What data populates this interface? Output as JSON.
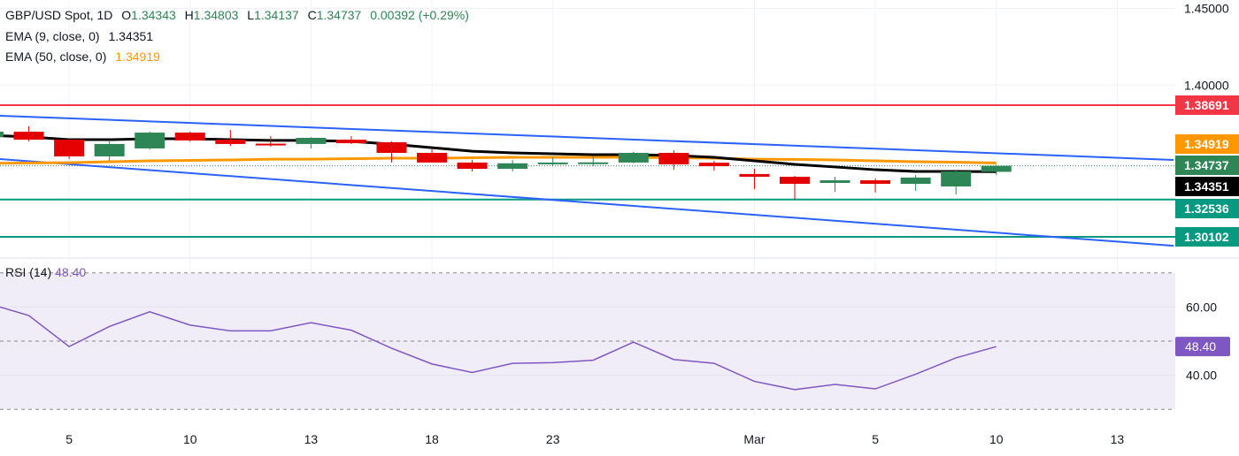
{
  "header": {
    "symbol": "GBP/USD Spot, 1D",
    "open_label": "O",
    "open": "1.34343",
    "high_label": "H",
    "high": "1.34803",
    "low_label": "L",
    "low": "1.34137",
    "close_label": "C",
    "close": "1.34737",
    "change": "0.00392 (+0.29%)"
  },
  "indicators": {
    "ema9": {
      "label": "EMA (9, close, 0)",
      "value": "1.34351",
      "color": "#000000"
    },
    "ema50": {
      "label": "EMA (50, close, 0)",
      "value": "1.34919",
      "color": "#ff9800"
    },
    "rsi": {
      "label": "RSI (14)",
      "value": "48.40",
      "color": "#7e57c2"
    }
  },
  "colors": {
    "up": "#2e8555",
    "down": "#e50000",
    "trendline": "#2962ff",
    "resistance": "#f23645",
    "support": "#089981",
    "rsi_bg": "#f0ecf8"
  },
  "chart_data": {
    "type": "candlestick",
    "price_axis": {
      "ticks": [
        "1.45000",
        "1.40000"
      ],
      "tick_values": [
        1.45,
        1.4
      ]
    },
    "x_ticks": [
      {
        "label": "5",
        "index": 2
      },
      {
        "label": "10",
        "index": 5
      },
      {
        "label": "13",
        "index": 8
      },
      {
        "label": "18",
        "index": 11
      },
      {
        "label": "23",
        "index": 14
      },
      {
        "label": "Mar",
        "index": 19
      },
      {
        "label": "5",
        "index": 22
      },
      {
        "label": "10",
        "index": 25
      },
      {
        "label": "13",
        "index": 28
      }
    ],
    "candles": [
      {
        "o": 1.3662,
        "h": 1.371,
        "l": 1.365,
        "c": 1.3696
      },
      {
        "o": 1.3696,
        "h": 1.3731,
        "l": 1.3633,
        "c": 1.3644
      },
      {
        "o": 1.3644,
        "h": 1.365,
        "l": 1.3518,
        "c": 1.3535
      },
      {
        "o": 1.3535,
        "h": 1.3633,
        "l": 1.3506,
        "c": 1.3616
      },
      {
        "o": 1.3587,
        "h": 1.3696,
        "l": 1.358,
        "c": 1.369
      },
      {
        "o": 1.369,
        "h": 1.3696,
        "l": 1.363,
        "c": 1.3639
      },
      {
        "o": 1.3644,
        "h": 1.3708,
        "l": 1.3604,
        "c": 1.3616
      },
      {
        "o": 1.3618,
        "h": 1.3667,
        "l": 1.3598,
        "c": 1.3614
      },
      {
        "o": 1.3616,
        "h": 1.366,
        "l": 1.3587,
        "c": 1.3656
      },
      {
        "o": 1.3644,
        "h": 1.3667,
        "l": 1.3616,
        "c": 1.3621
      },
      {
        "o": 1.3627,
        "h": 1.3633,
        "l": 1.3495,
        "c": 1.3558
      },
      {
        "o": 1.3558,
        "h": 1.3581,
        "l": 1.3495,
        "c": 1.3495
      },
      {
        "o": 1.3495,
        "h": 1.3512,
        "l": 1.3437,
        "c": 1.3454
      },
      {
        "o": 1.3454,
        "h": 1.3512,
        "l": 1.3437,
        "c": 1.349
      },
      {
        "o": 1.349,
        "h": 1.3529,
        "l": 1.3471,
        "c": 1.3495
      },
      {
        "o": 1.349,
        "h": 1.3535,
        "l": 1.3471,
        "c": 1.3496
      },
      {
        "o": 1.3495,
        "h": 1.3564,
        "l": 1.349,
        "c": 1.3558
      },
      {
        "o": 1.3558,
        "h": 1.3575,
        "l": 1.3448,
        "c": 1.3483
      },
      {
        "o": 1.3494,
        "h": 1.3506,
        "l": 1.3443,
        "c": 1.3471
      },
      {
        "o": 1.342,
        "h": 1.3454,
        "l": 1.3322,
        "c": 1.3402
      },
      {
        "o": 1.3402,
        "h": 1.3408,
        "l": 1.3252,
        "c": 1.3356
      },
      {
        "o": 1.3362,
        "h": 1.3402,
        "l": 1.3304,
        "c": 1.3379
      },
      {
        "o": 1.3379,
        "h": 1.3391,
        "l": 1.3299,
        "c": 1.3356
      },
      {
        "o": 1.3356,
        "h": 1.3414,
        "l": 1.331,
        "c": 1.3397
      },
      {
        "o": 1.3339,
        "h": 1.3443,
        "l": 1.3287,
        "c": 1.3437
      },
      {
        "o": 1.34343,
        "h": 1.34803,
        "l": 1.34137,
        "c": 1.34737
      }
    ],
    "ema9": [
      1.3673,
      1.3662,
      1.3644,
      1.3644,
      1.365,
      1.365,
      1.3644,
      1.3639,
      1.3639,
      1.3633,
      1.3615,
      1.3592,
      1.3569,
      1.3558,
      1.3552,
      1.3546,
      1.3546,
      1.3541,
      1.3529,
      1.3506,
      1.3483,
      1.3466,
      1.3448,
      1.3437,
      1.3437,
      1.34351
    ],
    "ema50": [
      1.3489,
      1.3492,
      1.3494,
      1.35,
      1.3506,
      1.3509,
      1.3512,
      1.3517,
      1.3517,
      1.352,
      1.3523,
      1.3523,
      1.3526,
      1.3529,
      1.3529,
      1.3529,
      1.3529,
      1.3526,
      1.3523,
      1.3517,
      1.3515,
      1.3512,
      1.3506,
      1.35,
      1.3497,
      1.34919
    ],
    "trendlines": [
      {
        "from": {
          "index": 0,
          "price": 1.3803
        },
        "to": {
          "index": 29.4,
          "price": 1.3512
        }
      },
      {
        "from": {
          "index": 0,
          "price": 1.3523
        },
        "to": {
          "index": 29.4,
          "price": 1.2952
        }
      }
    ],
    "levels": [
      {
        "price": 1.38691,
        "label": "1.38691",
        "kind": "resistance"
      },
      {
        "price": 1.32536,
        "label": "1.32536",
        "kind": "support"
      },
      {
        "price": 1.30102,
        "label": "1.30102",
        "kind": "support"
      }
    ],
    "price_tags": [
      {
        "label": "1.38691",
        "color": "#f23645"
      },
      {
        "label": "1.34919",
        "color": "#ff9800"
      },
      {
        "label": "1.34737",
        "color": "#2e8555"
      },
      {
        "label": "1.34351",
        "color": "#000000"
      },
      {
        "label": "1.32536",
        "color": "#089981"
      },
      {
        "label": "1.30102",
        "color": "#089981"
      }
    ],
    "rsi": {
      "values": [
        61.0,
        57.5,
        48.4,
        54.3,
        58.6,
        54.7,
        53.0,
        53.0,
        55.4,
        53.2,
        47.9,
        43.3,
        40.8,
        43.5,
        43.7,
        44.4,
        49.7,
        44.6,
        43.5,
        38.2,
        35.8,
        37.3,
        36.0,
        40.3,
        45.1,
        48.4
      ],
      "ticks": [
        "60.00",
        "40.00"
      ],
      "tick_values": [
        60,
        40
      ],
      "bands": [
        70,
        50,
        30
      ],
      "last_label": "48.40"
    }
  }
}
